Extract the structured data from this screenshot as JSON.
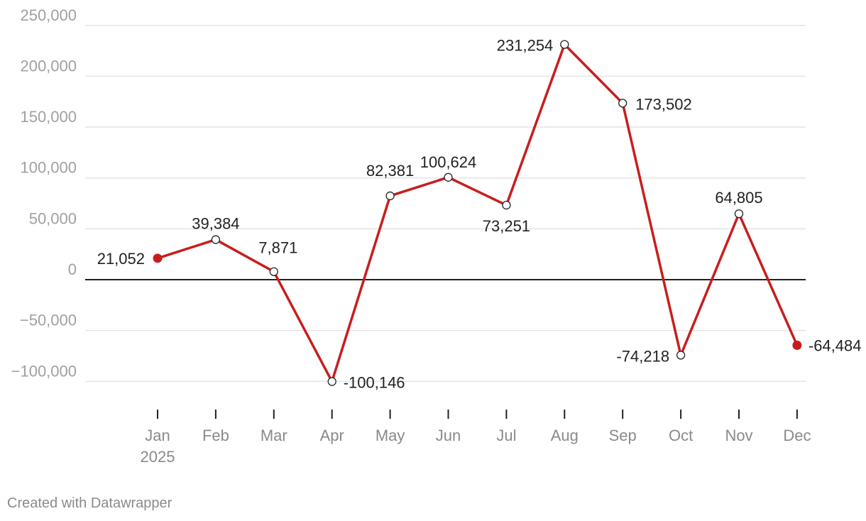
{
  "chart_data": {
    "type": "line",
    "categories": [
      "Jan",
      "Feb",
      "Mar",
      "Apr",
      "May",
      "Jun",
      "Jul",
      "Aug",
      "Sep",
      "Oct",
      "Nov",
      "Dec"
    ],
    "year_label": "2025",
    "series": [
      {
        "values": [
          21052,
          39384,
          7871,
          -100146,
          82381,
          100624,
          73251,
          231254,
          173502,
          -74218,
          64805,
          -64484
        ],
        "color": "#c71e1d"
      }
    ],
    "data_labels": [
      "21,052",
      "39,384",
      "7,871",
      "-100,146",
      "82,381",
      "100,624",
      "73,251",
      "231,254",
      "173,502",
      "-74,218",
      "64,805",
      "-64,484"
    ],
    "yticks": [
      250000,
      200000,
      150000,
      100000,
      50000,
      0,
      -50000,
      -100000
    ],
    "ytick_labels": [
      "250,000",
      "200,000",
      "150,000",
      "100,000",
      "50,000",
      "0",
      "−50,000",
      "−100,000"
    ],
    "ylim": [
      -100000,
      250000
    ],
    "grid": true,
    "filled_markers": [
      "first",
      "last"
    ],
    "zero_line_color": "#000000",
    "grid_color": "#e4e4e4"
  },
  "footer": "Created with Datawrapper"
}
